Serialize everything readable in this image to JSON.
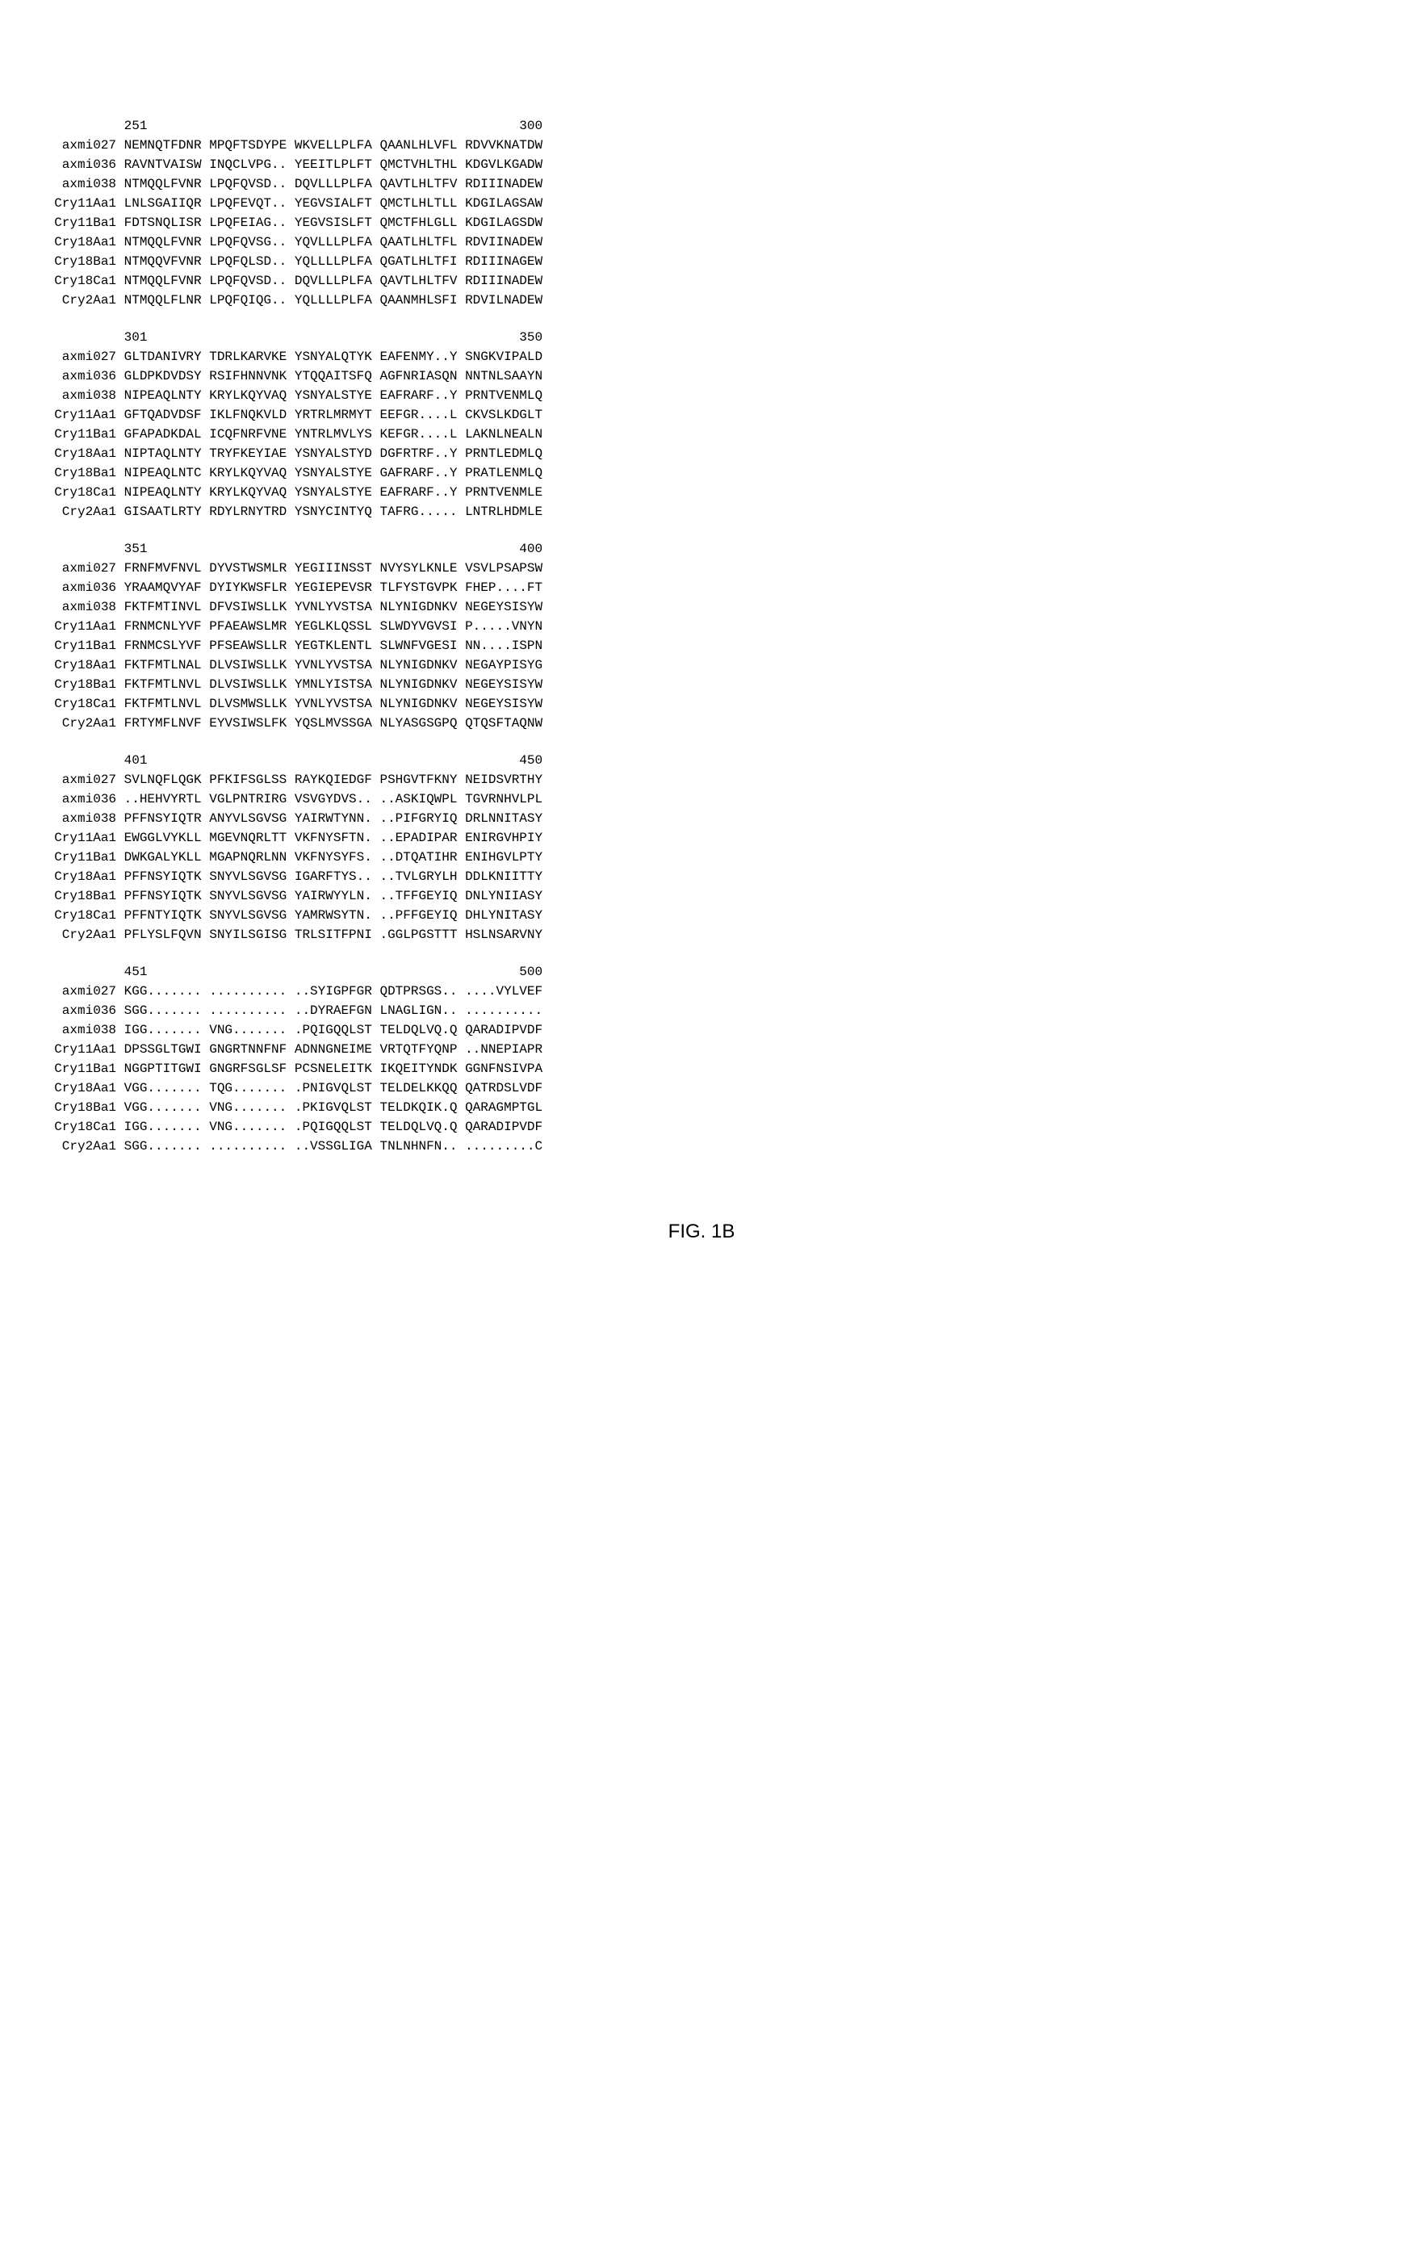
{
  "figure_label": "FIG. 1B",
  "font": {
    "mono_family": "Courier New",
    "caption_family": "Arial",
    "mono_size_pt": 16,
    "caption_size_pt": 24,
    "color": "#000000",
    "background": "#ffffff"
  },
  "labels": [
    "axmi027",
    "axmi036",
    "axmi038",
    "Cry11Aa1",
    "Cry11Ba1",
    "Cry18Aa1",
    "Cry18Ba1",
    "Cry18Ca1",
    "Cry2Aa1"
  ],
  "blocks": [
    {
      "start": 251,
      "end": 300,
      "rows": [
        [
          "NEMNQTFDNR",
          "MPQFTSDYPE",
          "WKVELLPLFA",
          "QAANLHLVFL",
          "RDVVKNATDW"
        ],
        [
          "RAVNTVAISW",
          "INQCLVPG..",
          "YEEITLPLFT",
          "QMCTVHLTHL",
          "KDGVLKGADW"
        ],
        [
          "NTMQQLFVNR",
          "LPQFQVSD..",
          "DQVLLLPLFA",
          "QAVTLHLTFV",
          "RDIIINADEW"
        ],
        [
          "LNLSGAIIQR",
          "LPQFEVQT..",
          "YEGVSIALFT",
          "QMCTLHLTLL",
          "KDGILAGSAW"
        ],
        [
          "FDTSNQLISR",
          "LPQFEIAG..",
          "YEGVSISLFT",
          "QMCTFHLGLL",
          "KDGILAGSDW"
        ],
        [
          "NTMQQLFVNR",
          "LPQFQVSG..",
          "YQVLLLPLFA",
          "QAATLHLTFL",
          "RDVIINADEW"
        ],
        [
          "NTMQQVFVNR",
          "LPQFQLSD..",
          "YQLLLLPLFA",
          "QGATLHLTFI",
          "RDIIINAGEW"
        ],
        [
          "NTMQQLFVNR",
          "LPQFQVSD..",
          "DQVLLLPLFA",
          "QAVTLHLTFV",
          "RDIIINADEW"
        ],
        [
          "NTMQQLFLNR",
          "LPQFQIQG..",
          "YQLLLLPLFA",
          "QAANMHLSFI",
          "RDVILNADEW"
        ]
      ]
    },
    {
      "start": 301,
      "end": 350,
      "rows": [
        [
          "GLTDANIVRY",
          "TDRLKARVKE",
          "YSNYALQTYK",
          "EAFENMY..Y",
          "SNGKVIPALD"
        ],
        [
          "GLDPKDVDSY",
          "RSIFHNNVNK",
          "YTQQAITSFQ",
          "AGFNRIASQN",
          "NNTNLSAAYN"
        ],
        [
          "NIPEAQLNTY",
          "KRYLKQYVAQ",
          "YSNYALSTYE",
          "EAFRARF..Y",
          "PRNTVENMLQ"
        ],
        [
          "GFTQADVDSF",
          "IKLFNQKVLD",
          "YRTRLMRMYT",
          "EEFGR....L",
          "CKVSLKDGLT"
        ],
        [
          "GFAPADKDAL",
          "ICQFNRFVNE",
          "YNTRLMVLYS",
          "KEFGR....L",
          "LAKNLNEALN"
        ],
        [
          "NIPTAQLNTY",
          "TRYFKEYIAE",
          "YSNYALSTYD",
          "DGFRTRF..Y",
          "PRNTLEDMLQ"
        ],
        [
          "NIPEAQLNTC",
          "KRYLKQYVAQ",
          "YSNYALSTYE",
          "GAFRARF..Y",
          "PRATLENMLQ"
        ],
        [
          "NIPEAQLNTY",
          "KRYLKQYVAQ",
          "YSNYALSTYE",
          "EAFRARF..Y",
          "PRNTVENMLE"
        ],
        [
          "GISAATLRTY",
          "RDYLRNYTRD",
          "YSNYCINTYQ",
          "TAFRG.....",
          "LNTRLHDMLE"
        ]
      ]
    },
    {
      "start": 351,
      "end": 400,
      "rows": [
        [
          "FRNFMVFNVL",
          "DYVSTWSMLR",
          "YEGIIINSST",
          "NVYSYLKNLE",
          "VSVLPSAPSW"
        ],
        [
          "YRAAMQVYAF",
          "DYIYKWSFLR",
          "YEGIEPEVSR",
          "TLFYSTGVPK",
          "FHEP....FT"
        ],
        [
          "FKTFMTINVL",
          "DFVSIWSLLK",
          "YVNLYVSTSA",
          "NLYNIGDNKV",
          "NEGEYSISYW"
        ],
        [
          "FRNMCNLYVF",
          "PFAEAWSLMR",
          "YEGLKLQSSL",
          "SLWDYVGVSI",
          "P.....VNYN"
        ],
        [
          "FRNMCSLYVF",
          "PFSEAWSLLR",
          "YEGTKLENTL",
          "SLWNFVGESI",
          "NN....ISPN"
        ],
        [
          "FKTFMTLNAL",
          "DLVSIWSLLK",
          "YVNLYVSTSA",
          "NLYNIGDNKV",
          "NEGAYPISYG"
        ],
        [
          "FKTFMTLNVL",
          "DLVSIWSLLK",
          "YMNLYISTSA",
          "NLYNIGDNKV",
          "NEGEYSISYW"
        ],
        [
          "FKTFMTLNVL",
          "DLVSMWSLLK",
          "YVNLYVSTSA",
          "NLYNIGDNKV",
          "NEGEYSISYW"
        ],
        [
          "FRTYMFLNVF",
          "EYVSIWSLFK",
          "YQSLMVSSGA",
          "NLYASGSGPQ",
          "QTQSFTAQNW"
        ]
      ]
    },
    {
      "start": 401,
      "end": 450,
      "rows": [
        [
          "SVLNQFLQGK",
          "PFKIFSGLSS",
          "RAYKQIEDGF",
          "PSHGVTFKNY",
          "NEIDSVRTHY"
        ],
        [
          "..HEHVYRTL",
          "VGLPNTRIRG",
          "VSVGYDVS..",
          "..ASKIQWPL",
          "TGVRNHVLPL"
        ],
        [
          "PFFNSYIQTR",
          "ANYVLSGVSG",
          "YAIRWTYNN.",
          "..PIFGRYIQ",
          "DRLNNITASY"
        ],
        [
          "EWGGLVYKLL",
          "MGEVNQRLTT",
          "VKFNYSFTN.",
          "..EPADIPAR",
          "ENIRGVHPIY"
        ],
        [
          "DWKGALYKLL",
          "MGAPNQRLNN",
          "VKFNYSYFS.",
          "..DTQATIHR",
          "ENIHGVLPTY"
        ],
        [
          "PFFNSYIQTK",
          "SNYVLSGVSG",
          "IGARFTYS..",
          "..TVLGRYLH",
          "DDLKNIITTY"
        ],
        [
          "PFFNSYIQTK",
          "SNYVLSGVSG",
          "YAIRWYYLN.",
          "..TFFGEYIQ",
          "DNLYNIIASY"
        ],
        [
          "PFFNTYIQTK",
          "SNYVLSGVSG",
          "YAMRWSYTN.",
          "..PFFGEYIQ",
          "DHLYNITASY"
        ],
        [
          "PFLYSLFQVN",
          "SNYILSGISG",
          "TRLSITFPNI",
          ".GGLPGSTTT",
          "HSLNSARVNY"
        ]
      ]
    },
    {
      "start": 451,
      "end": 500,
      "rows": [
        [
          "KGG.......",
          "..........",
          "..SYIGPFGR",
          "QDTPRSGS..",
          "....VYLVEF"
        ],
        [
          "SGG.......",
          "..........",
          "..DYRAEFGN",
          "LNAGLIGN..",
          ".........."
        ],
        [
          "IGG.......",
          "VNG.......",
          ".PQIGQQLST",
          "TELDQLVQ.Q",
          "QARADIPVDF"
        ],
        [
          "DPSSGLTGWI",
          "GNGRTNNFNF",
          "ADNNGNEIME",
          "VRTQTFYQNP",
          "..NNEPIAPR"
        ],
        [
          "NGGPTITGWI",
          "GNGRFSGLSF",
          "PCSNELEITK",
          "IKQEITYNDK",
          "GGNFNSIVPA"
        ],
        [
          "VGG.......",
          "TQG.......",
          ".PNIGVQLST",
          "TELDELKKQQ",
          "QATRDSLVDF"
        ],
        [
          "VGG.......",
          "VNG.......",
          ".PKIGVQLST",
          "TELDKQIK.Q",
          "QARAGMPTGL"
        ],
        [
          "IGG.......",
          "VNG.......",
          ".PQIGQQLST",
          "TELDQLVQ.Q",
          "QARADIPVDF"
        ],
        [
          "SGG.......",
          "..........",
          "..VSSGLIGA",
          "TNLNHNFN..",
          ".........C"
        ]
      ]
    }
  ]
}
